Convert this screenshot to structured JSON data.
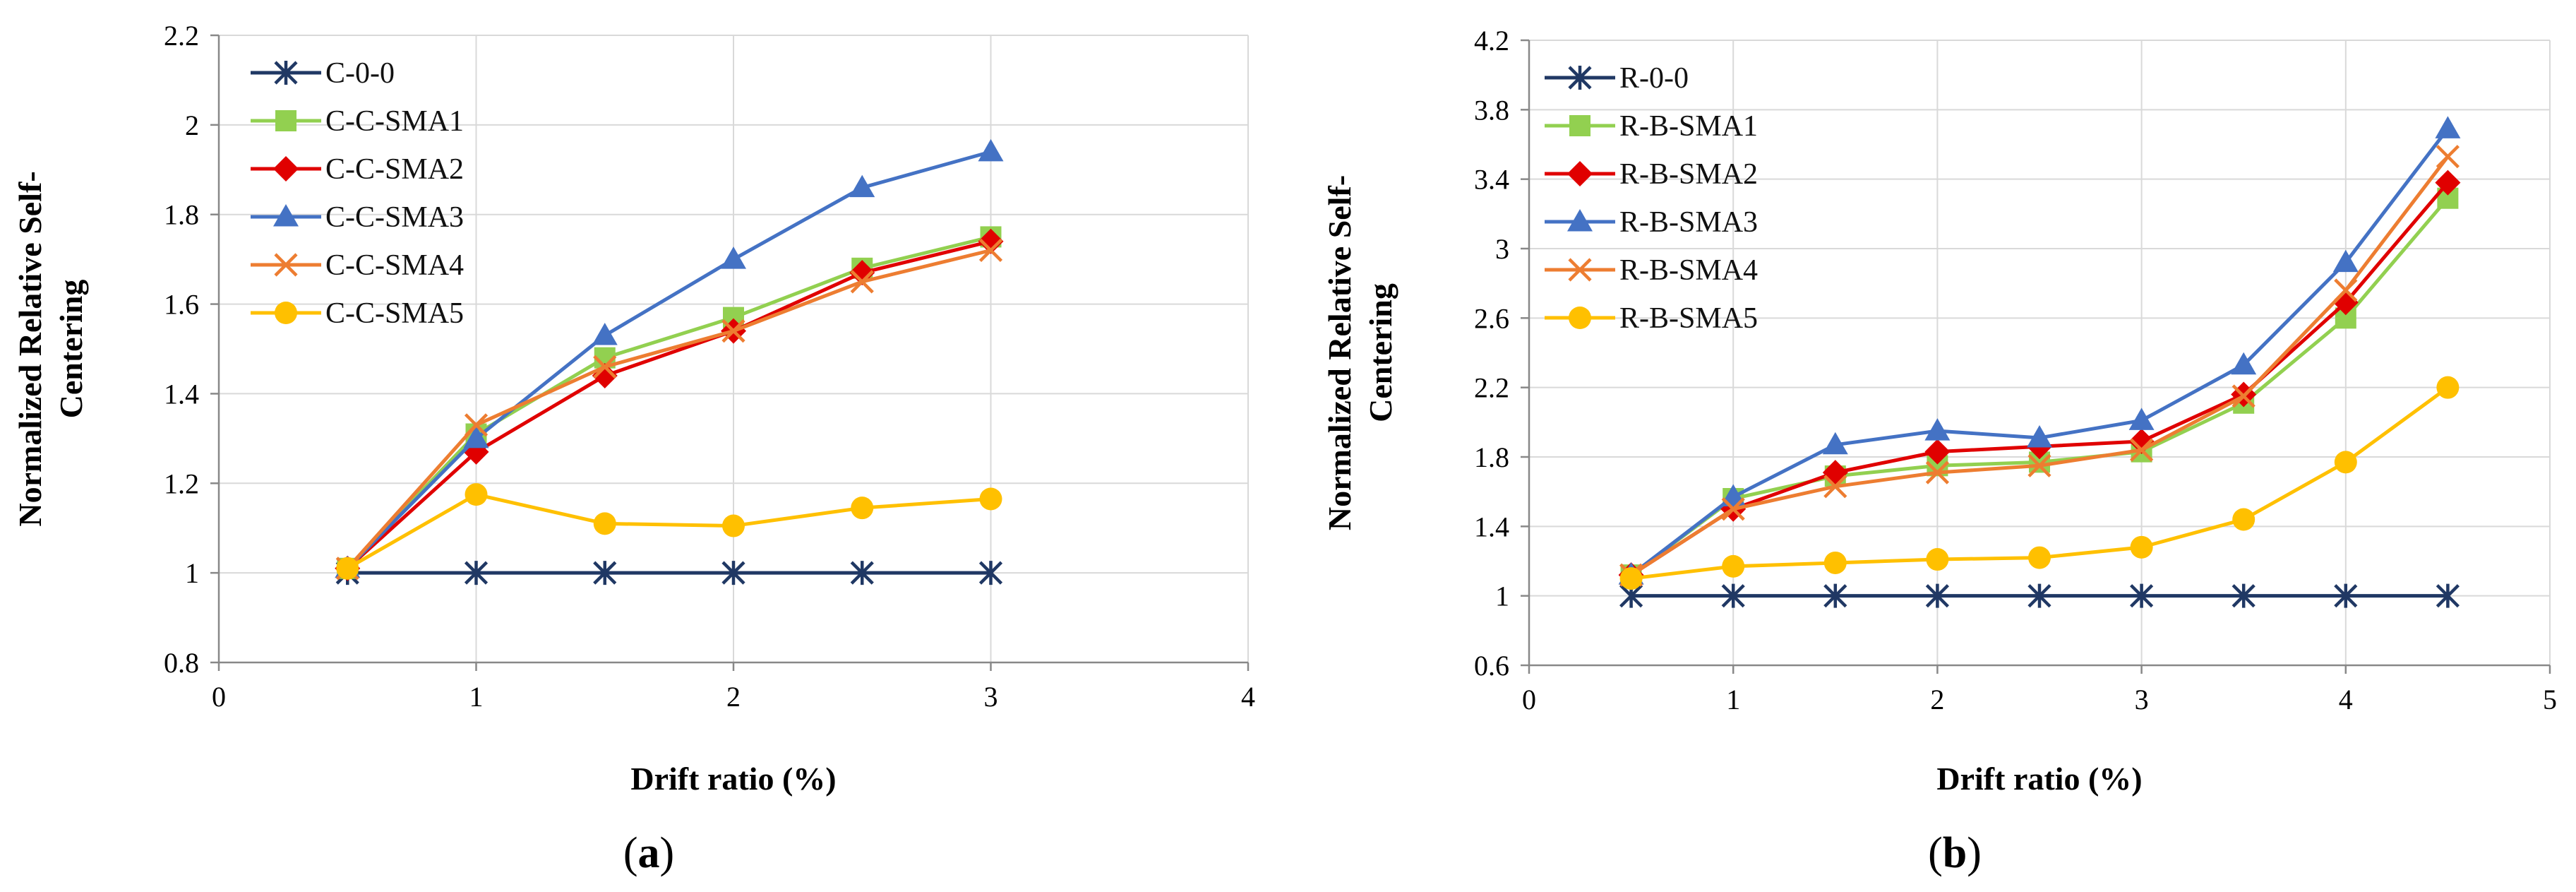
{
  "chart_data": [
    {
      "type": "line",
      "panel_label": "(a)",
      "panel_letter": "a",
      "xlabel": "Drift ratio (%)",
      "ylabel_lines": [
        "Normalized Relative Self-",
        "Centering"
      ],
      "xlim": [
        0,
        4
      ],
      "ylim": [
        0.8,
        2.2
      ],
      "xticks": [
        0,
        1,
        2,
        3,
        4
      ],
      "xtick_labels": [
        "0",
        "1",
        "2",
        "3",
        "4"
      ],
      "yticks": [
        0.8,
        1.0,
        1.2,
        1.4,
        1.6,
        1.8,
        2.0,
        2.2
      ],
      "ytick_labels": [
        "0.8",
        "1",
        "1.2",
        "1.4",
        "1.6",
        "1.8",
        "2",
        "2.2"
      ],
      "grid": true,
      "legend_position": "top-left",
      "series": [
        {
          "name": "C-0-0",
          "color": "#203864",
          "marker": "asterisk",
          "x": [
            0.5,
            1,
            1.5,
            2,
            2.5,
            3
          ],
          "y": [
            1.0,
            1.0,
            1.0,
            1.0,
            1.0,
            1.0
          ]
        },
        {
          "name": "C-C-SMA1",
          "color": "#92d050",
          "marker": "square",
          "x": [
            0.5,
            1,
            1.5,
            2,
            2.5,
            3
          ],
          "y": [
            1.01,
            1.31,
            1.48,
            1.57,
            1.68,
            1.75
          ]
        },
        {
          "name": "C-C-SMA2",
          "color": "#e00000",
          "marker": "diamond",
          "x": [
            0.5,
            1,
            1.5,
            2,
            2.5,
            3
          ],
          "y": [
            1.01,
            1.27,
            1.44,
            1.54,
            1.67,
            1.74
          ]
        },
        {
          "name": "C-C-SMA3",
          "color": "#4472c4",
          "marker": "triangle",
          "x": [
            0.5,
            1,
            1.5,
            2,
            2.5,
            3
          ],
          "y": [
            1.01,
            1.3,
            1.53,
            1.7,
            1.86,
            1.94
          ]
        },
        {
          "name": "C-C-SMA4",
          "color": "#ed7d31",
          "marker": "x",
          "x": [
            0.5,
            1,
            1.5,
            2,
            2.5,
            3
          ],
          "y": [
            1.01,
            1.33,
            1.46,
            1.54,
            1.65,
            1.72
          ]
        },
        {
          "name": "C-C-SMA5",
          "color": "#ffc000",
          "marker": "circle",
          "x": [
            0.5,
            1,
            1.5,
            2,
            2.5,
            3
          ],
          "y": [
            1.01,
            1.175,
            1.11,
            1.105,
            1.145,
            1.165
          ]
        }
      ]
    },
    {
      "type": "line",
      "panel_label": "(b)",
      "panel_letter": "b",
      "xlabel": "Drift ratio (%)",
      "ylabel_lines": [
        "Normalized Relative Self-",
        "Centering"
      ],
      "xlim": [
        0,
        5
      ],
      "ylim": [
        0.6,
        4.2
      ],
      "xticks": [
        0,
        1,
        2,
        3,
        4,
        5
      ],
      "xtick_labels": [
        "0",
        "1",
        "2",
        "3",
        "4",
        "5"
      ],
      "yticks": [
        0.6,
        1.0,
        1.4,
        1.8,
        2.2,
        2.6,
        3.0,
        3.4,
        3.8,
        4.2
      ],
      "ytick_labels": [
        "0.6",
        "1",
        "1.4",
        "1.8",
        "2.2",
        "2.6",
        "3",
        "3.4",
        "3.8",
        "4.2"
      ],
      "grid": true,
      "legend_position": "top-left",
      "series": [
        {
          "name": "R-0-0",
          "color": "#203864",
          "marker": "asterisk",
          "x": [
            0.5,
            1,
            1.5,
            2,
            2.5,
            3,
            3.5,
            4,
            4.5
          ],
          "y": [
            1.0,
            1.0,
            1.0,
            1.0,
            1.0,
            1.0,
            1.0,
            1.0,
            1.0
          ]
        },
        {
          "name": "R-B-SMA1",
          "color": "#92d050",
          "marker": "square",
          "x": [
            0.5,
            1,
            1.5,
            2,
            2.5,
            3,
            3.5,
            4,
            4.5
          ],
          "y": [
            1.12,
            1.56,
            1.69,
            1.75,
            1.77,
            1.83,
            2.11,
            2.6,
            3.29
          ]
        },
        {
          "name": "R-B-SMA2",
          "color": "#e00000",
          "marker": "diamond",
          "x": [
            0.5,
            1,
            1.5,
            2,
            2.5,
            3,
            3.5,
            4,
            4.5
          ],
          "y": [
            1.12,
            1.5,
            1.71,
            1.83,
            1.86,
            1.89,
            2.16,
            2.69,
            3.38
          ]
        },
        {
          "name": "R-B-SMA3",
          "color": "#4472c4",
          "marker": "triangle",
          "x": [
            0.5,
            1,
            1.5,
            2,
            2.5,
            3,
            3.5,
            4,
            4.5
          ],
          "y": [
            1.12,
            1.57,
            1.87,
            1.95,
            1.91,
            2.01,
            2.33,
            2.92,
            3.69
          ]
        },
        {
          "name": "R-B-SMA4",
          "color": "#ed7d31",
          "marker": "x",
          "x": [
            0.5,
            1,
            1.5,
            2,
            2.5,
            3,
            3.5,
            4,
            4.5
          ],
          "y": [
            1.12,
            1.5,
            1.63,
            1.71,
            1.75,
            1.84,
            2.15,
            2.76,
            3.53
          ]
        },
        {
          "name": "R-B-SMA5",
          "color": "#ffc000",
          "marker": "circle",
          "x": [
            0.5,
            1,
            1.5,
            2,
            2.5,
            3,
            3.5,
            4,
            4.5
          ],
          "y": [
            1.1,
            1.17,
            1.19,
            1.21,
            1.22,
            1.28,
            1.44,
            1.77,
            2.2
          ]
        }
      ]
    }
  ]
}
